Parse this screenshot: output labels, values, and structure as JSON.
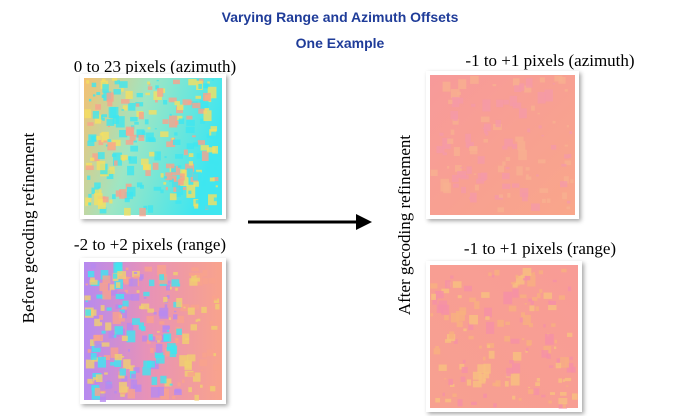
{
  "header": {
    "title": "Varying Range and Azimuth Offsets",
    "subtitle": "One Example"
  },
  "before": {
    "side_label": "Before gecoding refinement",
    "panels": [
      {
        "label": "0 to 23 pixels (azimuth)"
      },
      {
        "label": "-2 to +2 pixels (range)"
      }
    ]
  },
  "after": {
    "side_label": "After gecoding refinement",
    "panels": [
      {
        "label": "-1 to +1 pixels (azimuth)"
      },
      {
        "label": "-1 to +1 pixels (range)"
      }
    ]
  }
}
